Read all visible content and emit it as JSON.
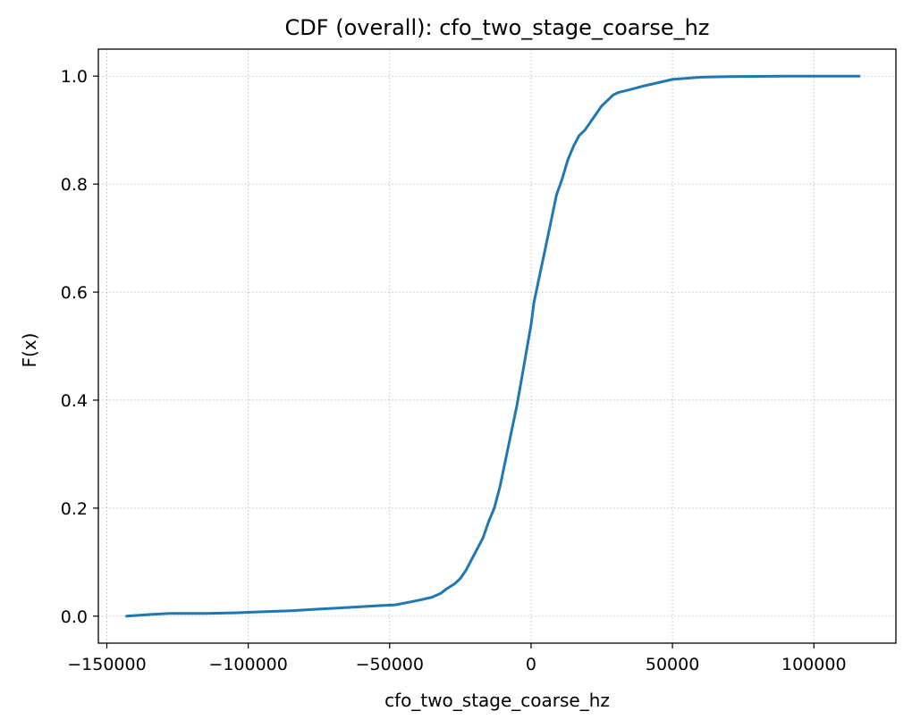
{
  "chart_data": {
    "type": "line",
    "title": "CDF (overall): cfo_two_stage_coarse_hz",
    "xlabel": "cfo_two_stage_coarse_hz",
    "ylabel": "F(x)",
    "xlim": [
      -153000,
      129000
    ],
    "ylim": [
      -0.05,
      1.05
    ],
    "xticks": [
      -150000,
      -100000,
      -50000,
      0,
      50000,
      100000
    ],
    "xtick_labels": [
      "−150000",
      "−100000",
      "−50000",
      "0",
      "50000",
      "100000"
    ],
    "yticks": [
      0.0,
      0.2,
      0.4,
      0.6,
      0.8,
      1.0
    ],
    "ytick_labels": [
      "0.0",
      "0.2",
      "0.4",
      "0.6",
      "0.8",
      "1.0"
    ],
    "grid": true,
    "series": [
      {
        "color": "#1f77b4",
        "x": [
          -143000,
          -135000,
          -128000,
          -115000,
          -105000,
          -95000,
          -85000,
          -75000,
          -65000,
          -55000,
          -48000,
          -44000,
          -40000,
          -35000,
          -32000,
          -30000,
          -27000,
          -25000,
          -23000,
          -21000,
          -19000,
          -17000,
          -15000,
          -13000,
          -11000,
          -9000,
          -7000,
          -5000,
          -3000,
          -1000,
          0,
          1000,
          3000,
          5000,
          7000,
          9000,
          11000,
          13000,
          15000,
          17000,
          19000,
          21000,
          23000,
          25000,
          27000,
          29000,
          31000,
          35000,
          40000,
          45000,
          50000,
          55000,
          60000,
          70000,
          80000,
          90000,
          100000,
          116000
        ],
        "y": [
          0.0,
          0.003,
          0.005,
          0.005,
          0.006,
          0.008,
          0.01,
          0.013,
          0.016,
          0.019,
          0.021,
          0.025,
          0.029,
          0.035,
          0.042,
          0.05,
          0.06,
          0.07,
          0.085,
          0.105,
          0.125,
          0.145,
          0.175,
          0.2,
          0.24,
          0.29,
          0.34,
          0.39,
          0.45,
          0.51,
          0.54,
          0.58,
          0.63,
          0.68,
          0.73,
          0.78,
          0.81,
          0.845,
          0.87,
          0.89,
          0.9,
          0.915,
          0.93,
          0.945,
          0.955,
          0.965,
          0.97,
          0.975,
          0.982,
          0.988,
          0.994,
          0.996,
          0.998,
          0.999,
          0.9995,
          1.0,
          1.0,
          1.0
        ]
      }
    ]
  }
}
